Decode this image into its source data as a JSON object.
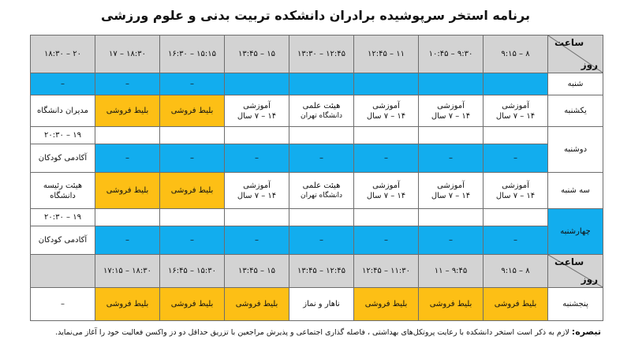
{
  "title": "برنامه استخر سرپوشیده برادران دانشکده تربیت بدنی و علوم ورزشی",
  "corner": {
    "top": "ساعت",
    "bottom": "روز"
  },
  "time_slots": [
    "۸ – ۹:۱۵",
    "۹:۳۰ – ۱۰:۴۵",
    "۱۱ – ۱۲:۴۵",
    "۱۲:۴۵ – ۱۳:۳۰",
    "۱۵ – ۱۳:۴۵",
    "۱۵:۱۵ – ۱۶:۳۰",
    "۱۸:۳۰ – ۱۷",
    "۲۰ – ۱۸:۳۰"
  ],
  "time_slots_thursday": [
    "۸ – ۹:۱۵",
    "۹:۴۵ – ۱۱",
    "۱۱:۳۰ – ۱۲:۴۵",
    "۱۲:۴۵ – ۱۳:۴۵",
    "۱۵ – ۱۳:۴۵",
    "۱۵:۳۰ – ۱۶:۴۵",
    "۱۸:۳۰ – ۱۷:۱۵",
    ""
  ],
  "days": {
    "saturday": "شنبه",
    "sunday": "یکشنبه",
    "monday": "دوشنبه",
    "tuesday": "سه شنبه",
    "wednesday": "چهارشنبه",
    "thursday": "پنجشنبه"
  },
  "cells": {
    "dash": "–",
    "training_line1": "آموزشی",
    "training_line2": "۱۴ – ۷ سال",
    "faculty_line1": "هیئت علمی",
    "faculty_line2": "دانشگاه تهران",
    "ticket_sale": "بلیط فروشی",
    "managers": "مدیران دانشگاه",
    "board_line1": "هیئت رئیسه",
    "board_line2": "دانشگاه",
    "kids_time": "۱۹ – ۲۰:۳۰",
    "kids_academy": "آکادمی کودکان",
    "lunch_prayer": "ناهار و نماز"
  },
  "note": {
    "label": "تبصره:",
    "text": "لازم به ذکر است استخر دانشکده با رعایت پروتکل‌های بهداشتی ، فاصله گذاری اجتماعی و پذیرش مراجعین با تزریق حداقل دو دز واکسن فعالیت خود را آغاز می‌نماید."
  },
  "colors": {
    "blue": "#12adee",
    "orange": "#fdbf15",
    "grey": "#d3d3d3"
  }
}
